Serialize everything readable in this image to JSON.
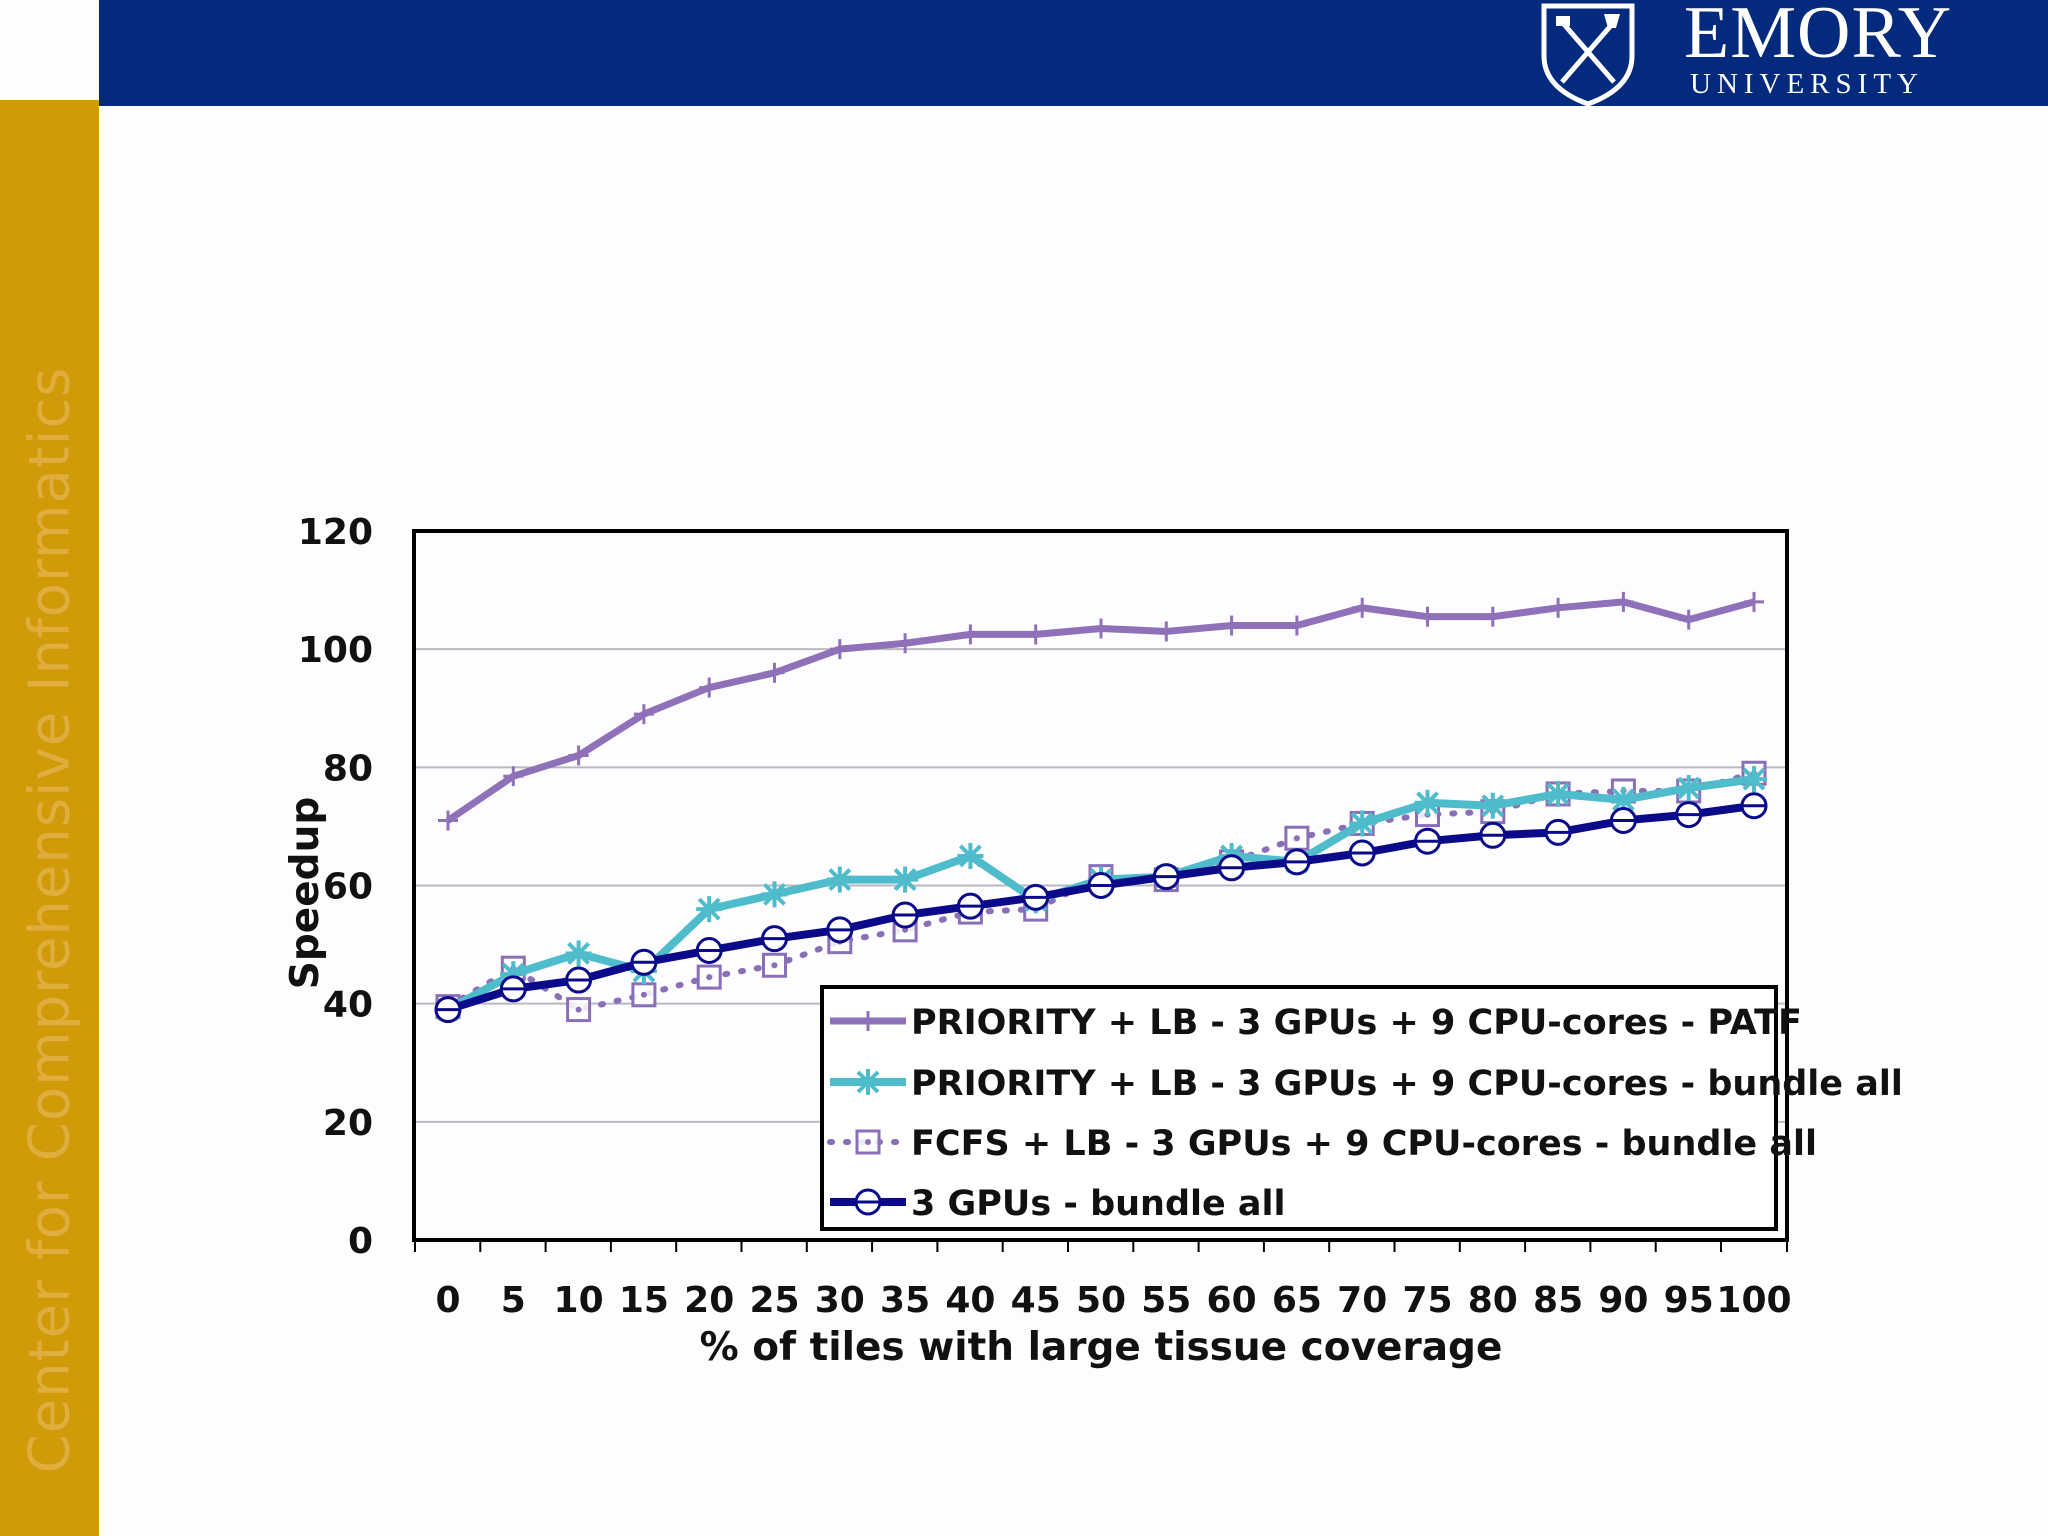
{
  "header": {
    "logo_name": "EMORY",
    "logo_sub": "UNIVERSITY",
    "side_text": "Center for Comprehensive Informatics"
  },
  "colors": {
    "header_blue": "#032a7c",
    "side_gold": "#d19a08",
    "series_patf": "#8e71b8",
    "series_priority_bundle": "#4fbccc",
    "series_fcfs": "#8a6fb8",
    "series_3gpu": "#0a0a8a"
  },
  "chart_data": {
    "type": "line",
    "title": "",
    "xlabel": "% of tiles with large tissue coverage",
    "ylabel": "Speedup",
    "ylim": [
      0,
      120
    ],
    "yticks": [
      0,
      20,
      40,
      60,
      80,
      100,
      120
    ],
    "grid": true,
    "legend_position": "bottom-right",
    "x": [
      0,
      5,
      10,
      15,
      20,
      25,
      30,
      35,
      40,
      45,
      50,
      55,
      60,
      65,
      70,
      75,
      80,
      85,
      90,
      95,
      100
    ],
    "series": [
      {
        "name": "PRIORITY + LB - 3 GPUs + 9 CPU-cores - PATF",
        "marker": "plus",
        "values": [
          71,
          78.5,
          82,
          89,
          93.5,
          96,
          100,
          101,
          102.5,
          102.5,
          103.5,
          103,
          104,
          104,
          107,
          105.5,
          105.5,
          107,
          108,
          105,
          108
        ]
      },
      {
        "name": "PRIORITY + LB - 3 GPUs + 9 CPU-cores - bundle all",
        "marker": "asterisk",
        "values": [
          39,
          45,
          48.5,
          45.5,
          56,
          58.5,
          61,
          61,
          65,
          57.5,
          61,
          61.5,
          65,
          64,
          70.5,
          74,
          73.5,
          75.5,
          74.5,
          76.5,
          78
        ]
      },
      {
        "name": "FCFS + LB - 3 GPUs + 9 CPU-cores - bundle all",
        "marker": "square",
        "values": [
          39.5,
          46,
          39,
          41.5,
          44.5,
          46.5,
          50.5,
          52.5,
          55.5,
          56,
          61.5,
          61,
          64,
          68,
          70.5,
          72,
          72.5,
          75.5,
          76,
          76,
          79
        ]
      },
      {
        "name": "3 GPUs - bundle all",
        "marker": "circle",
        "values": [
          39,
          42.5,
          44,
          47,
          49,
          51,
          52.5,
          55,
          56.5,
          58,
          60,
          61.5,
          63,
          64,
          65.5,
          67.5,
          68.5,
          69,
          71,
          72,
          73.5
        ]
      }
    ]
  }
}
